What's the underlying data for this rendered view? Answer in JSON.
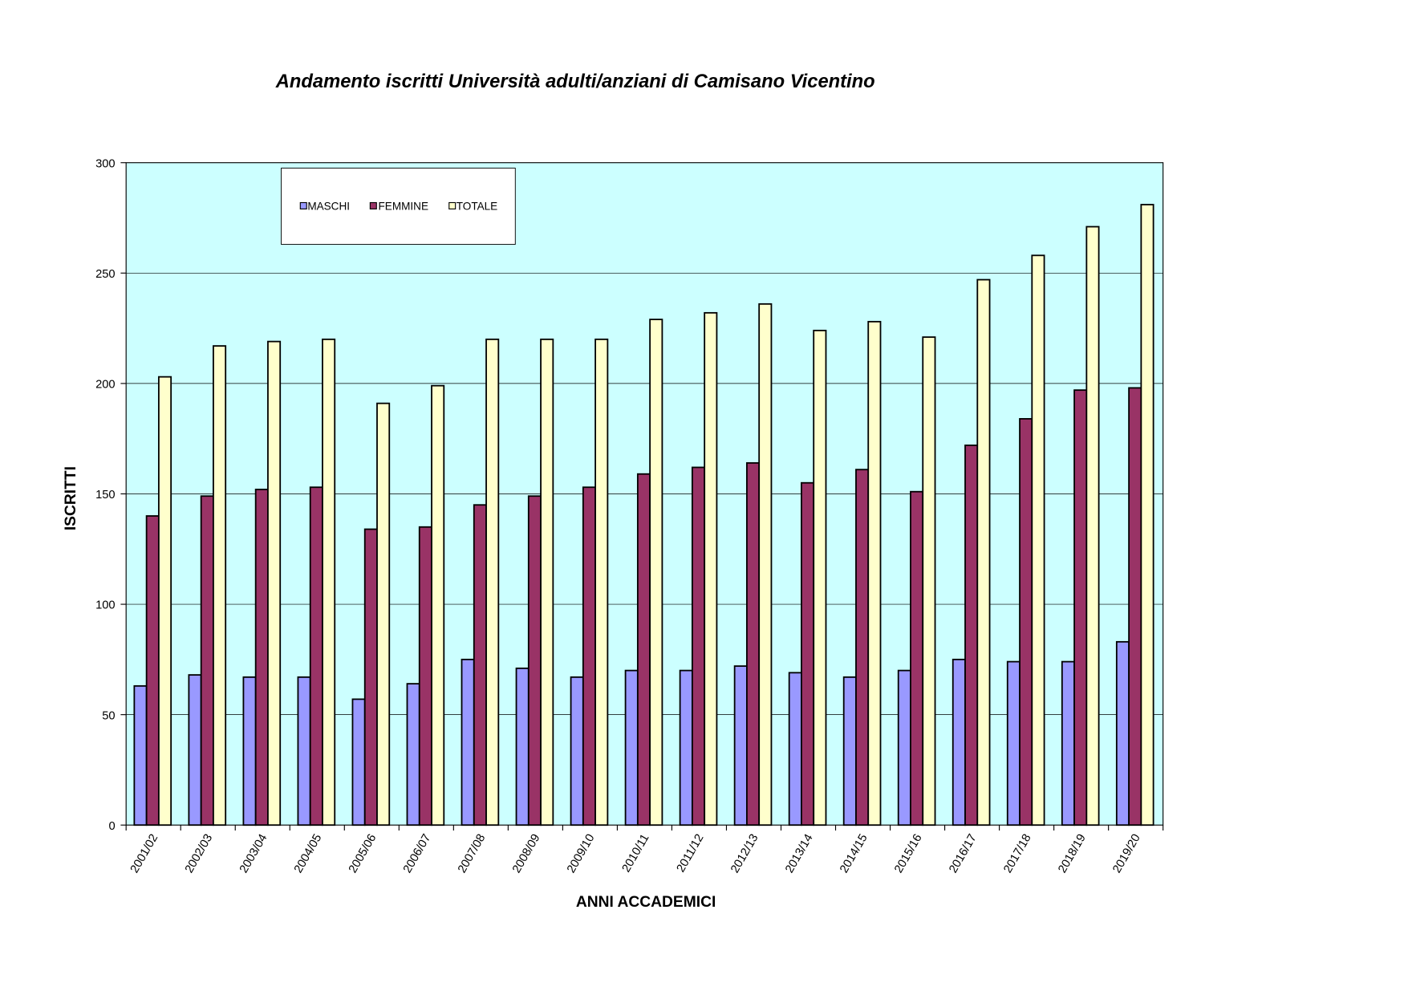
{
  "chart_data": {
    "type": "bar",
    "title": "Andamento iscritti Università adulti/anziani di Camisano Vicentino",
    "xlabel": "ANNI ACCADEMICI",
    "ylabel": "ISCRITTI",
    "ylim": [
      0,
      300
    ],
    "yticks": [
      0,
      50,
      100,
      150,
      200,
      250,
      300
    ],
    "grid": true,
    "legend_position": "top-left",
    "plot_background": "#CCFFFF",
    "categories": [
      "2001/02",
      "2002/03",
      "2003/04",
      "2004/05",
      "2005/06",
      "2006/07",
      "2007/08",
      "2008/09",
      "2009/10",
      "2010/11",
      "2011/12",
      "2012/13",
      "2013/14",
      "2014/15",
      "2015/16",
      "2016/17",
      "2017/18",
      "2018/19",
      "2019/20"
    ],
    "series": [
      {
        "name": "MASCHI",
        "color": "#9999FF",
        "values": [
          63,
          68,
          67,
          67,
          57,
          64,
          75,
          71,
          67,
          70,
          70,
          72,
          69,
          67,
          70,
          75,
          74,
          74,
          83
        ]
      },
      {
        "name": "FEMMINE",
        "color": "#993366",
        "values": [
          140,
          149,
          152,
          153,
          134,
          135,
          145,
          149,
          153,
          159,
          162,
          164,
          155,
          161,
          151,
          172,
          184,
          197,
          198
        ]
      },
      {
        "name": "TOTALE",
        "color": "#FFFFCC",
        "values": [
          203,
          217,
          219,
          220,
          191,
          199,
          220,
          220,
          220,
          229,
          232,
          236,
          224,
          228,
          221,
          247,
          258,
          271,
          281
        ]
      }
    ]
  }
}
